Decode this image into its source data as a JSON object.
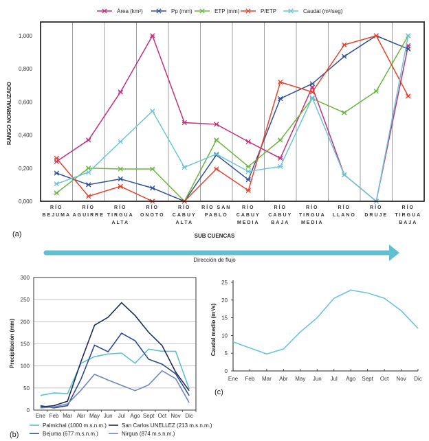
{
  "chart_data": [
    {
      "id": "a",
      "type": "line",
      "panel_label": "(a)",
      "title": "",
      "xlabel": "SUB CUENCAS",
      "ylabel": "RANGO NORMALIZADO",
      "ylim": [
        0,
        1.1
      ],
      "yticks": [
        0,
        0.2,
        0.4,
        0.6,
        0.8,
        1.0
      ],
      "ytick_labels": [
        "0,000",
        "0,200",
        "0,400",
        "0,600",
        "0,800",
        "1,000"
      ],
      "legend_position": "top",
      "categories": [
        [
          "RÍO",
          "BEJUMA"
        ],
        [
          "RÍO",
          "AGUIRRE"
        ],
        [
          "RÍO",
          "TIRGUA",
          "ALTA"
        ],
        [
          "RÍO",
          "ONOTO"
        ],
        [
          "RÍO",
          "CABUY",
          "ALTA"
        ],
        [
          "RÍO SAN",
          "PABLO"
        ],
        [
          "RÍO",
          "CABUY",
          "MEDIA"
        ],
        [
          "RÍO",
          "CABUY",
          "BAJA"
        ],
        [
          "RÍO",
          "TIRGUA",
          "MEDIA"
        ],
        [
          "RÍO",
          "LLANO"
        ],
        [
          "RÍO",
          "DRUJE"
        ],
        [
          "RÍO",
          "TIRGUA",
          "BAJA"
        ]
      ],
      "series": [
        {
          "name": "Área (km²)",
          "color": "#c0307a",
          "values": [
            0.24,
            0.37,
            0.66,
            1.0,
            0.475,
            0.465,
            0.36,
            0.26,
            0.69,
            0.16,
            0.0,
            0.94
          ]
        },
        {
          "name": "Pp (mm)",
          "color": "#2f4e96",
          "values": [
            0.17,
            0.1,
            0.135,
            0.08,
            0.0,
            0.28,
            0.13,
            0.62,
            0.71,
            0.875,
            1.0,
            0.92
          ]
        },
        {
          "name": "ETP (mm)",
          "color": "#6ab43e",
          "values": [
            0.05,
            0.2,
            0.195,
            0.195,
            0.0,
            0.37,
            0.21,
            0.37,
            0.62,
            0.535,
            0.665,
            1.0
          ]
        },
        {
          "name": "P/ETP",
          "color": "#e8412b",
          "values": [
            0.26,
            0.03,
            0.09,
            0.0,
            0.0,
            0.195,
            0.065,
            0.72,
            0.66,
            0.945,
            1.0,
            0.635
          ]
        },
        {
          "name": "Caudal (m³/seg)",
          "color": "#6cc4d6",
          "values": [
            0.105,
            0.175,
            0.36,
            0.545,
            0.205,
            0.285,
            0.18,
            0.21,
            0.625,
            0.16,
            0.0,
            1.0
          ]
        }
      ],
      "arrow_label": "Dirección de flujo",
      "arrow_color": "#62bfd2"
    },
    {
      "id": "b",
      "type": "line",
      "panel_label": "(b)",
      "xlabel": "",
      "ylabel": "Precipitación (mm)",
      "ylim": [
        0,
        300
      ],
      "yticks": [
        0,
        50,
        100,
        150,
        200,
        250,
        300
      ],
      "grid": true,
      "legend_position": "bottom",
      "categories": [
        "Ene",
        "Feb",
        "Mar",
        "Abr",
        "May",
        "Jun",
        "Jul",
        "Ago",
        "Sept",
        "Oct",
        "Nov",
        "Dic"
      ],
      "series": [
        {
          "name": "Palmichal (1000 m.s.n.m.)",
          "color": "#5ec0cc",
          "values": [
            33,
            39,
            37,
            106,
            121,
            127,
            129,
            106,
            138,
            133,
            133,
            48
          ]
        },
        {
          "name": "Bejuma (677 m.s.n.m.)",
          "color": "#2d4a90",
          "values": [
            10,
            5,
            10,
            70,
            147,
            132,
            174,
            157,
            115,
            104,
            82,
            33
          ]
        },
        {
          "name": "San Carlos UNELLEZ (213 m.s.n.m.)",
          "color": "#1f2b55",
          "values": [
            7,
            10,
            20,
            110,
            192,
            210,
            243,
            214,
            176,
            146,
            86,
            44
          ]
        },
        {
          "name": "Nirgua (874 m.s.n.m.)",
          "color": "#6f86c0",
          "values": [
            5,
            7,
            14,
            45,
            81,
            68,
            56,
            44,
            57,
            89,
            71,
            17
          ]
        }
      ]
    },
    {
      "id": "c",
      "type": "line",
      "panel_label": "(c)",
      "xlabel": "",
      "ylabel": "Caudal medio (m³/s)",
      "ylim": [
        0,
        25
      ],
      "yticks": [
        0,
        5,
        10,
        15,
        20,
        25
      ],
      "grid": false,
      "categories": [
        "Ene",
        "Feb",
        "Mar",
        "Abr",
        "May",
        "Jun",
        "Jul",
        "Ago",
        "Sept",
        "Oct",
        "Nov",
        "Dic"
      ],
      "series": [
        {
          "name": "Caudal medio",
          "color": "#6cc4d6",
          "values": [
            8.2,
            6.5,
            4.8,
            6.2,
            11.0,
            15.0,
            20.5,
            22.8,
            22.0,
            20.5,
            17.0,
            12.0
          ]
        }
      ]
    }
  ]
}
